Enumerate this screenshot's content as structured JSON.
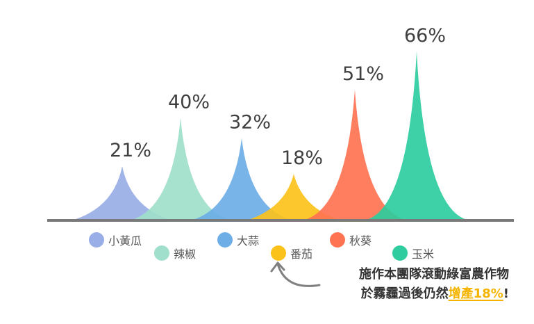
{
  "chart_data": {
    "type": "area",
    "title": "",
    "xlabel": "",
    "ylabel": "",
    "ylim": [
      0,
      70
    ],
    "series": [
      {
        "name": "小黃瓜",
        "value": 21,
        "label": "21%",
        "color": "#99aee6"
      },
      {
        "name": "辣椒",
        "value": 40,
        "label": "40%",
        "color": "#9fdfcb"
      },
      {
        "name": "大蒜",
        "value": 32,
        "label": "32%",
        "color": "#6daee6"
      },
      {
        "name": "番茄",
        "value": 18,
        "label": "18%",
        "color": "#fbc21b"
      },
      {
        "name": "秋葵",
        "value": 51,
        "label": "51%",
        "color": "#ff7352"
      },
      {
        "name": "玉米",
        "value": 66,
        "label": "66%",
        "color": "#2ecc9e"
      }
    ],
    "baseline_color": "#7a7a7a"
  },
  "annotation": {
    "line1": "施作本團隊滾動綠富農作物",
    "line2_prefix": "於霧霾過後仍然",
    "line2_highlight": "增產18%",
    "line2_suffix": "!",
    "arrow_color": "#808080",
    "highlight_color": "#f5b400"
  }
}
